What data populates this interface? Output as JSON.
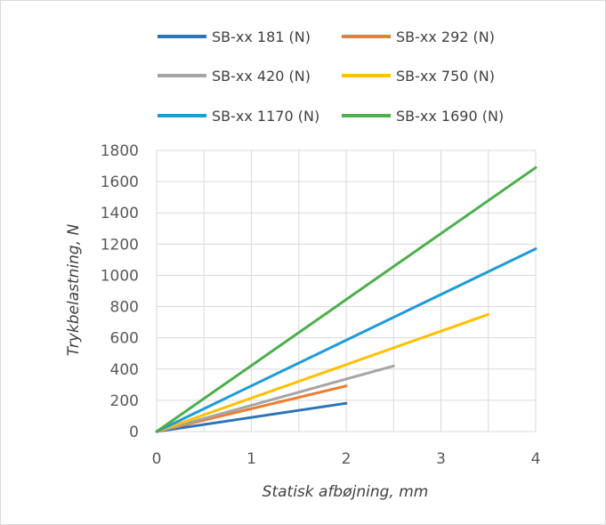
{
  "chart_data": {
    "type": "line",
    "title": "",
    "xlabel": "Statisk afbøjning, mm",
    "ylabel": "Trykbelastning, N",
    "xlim": [
      0,
      4
    ],
    "ylim": [
      0,
      1800
    ],
    "xticks": [
      "0",
      "1",
      "2",
      "3",
      "4"
    ],
    "yticks": [
      "0",
      "200",
      "400",
      "600",
      "800",
      "1000",
      "1200",
      "1400",
      "1600",
      "1800"
    ],
    "grid": true,
    "legend_position": "top",
    "series": [
      {
        "name": "SB-xx 181 (N)",
        "color": "#2e75b6",
        "x": [
          0,
          2
        ],
        "y": [
          0,
          181
        ]
      },
      {
        "name": "SB-xx 292 (N)",
        "color": "#ed7d31",
        "x": [
          0,
          2
        ],
        "y": [
          0,
          292
        ]
      },
      {
        "name": "SB-xx 420 (N)",
        "color": "#a5a5a5",
        "x": [
          0,
          2.5
        ],
        "y": [
          0,
          420
        ]
      },
      {
        "name": "SB-xx 750 (N)",
        "color": "#ffc000",
        "x": [
          0,
          3.5
        ],
        "y": [
          0,
          750
        ]
      },
      {
        "name": "SB-xx 1170 (N)",
        "color": "#1f9bd7",
        "x": [
          0,
          4
        ],
        "y": [
          0,
          1170
        ]
      },
      {
        "name": "SB-xx 1690 (N)",
        "color": "#4cae4c",
        "x": [
          0,
          4
        ],
        "y": [
          0,
          1690
        ]
      }
    ]
  }
}
